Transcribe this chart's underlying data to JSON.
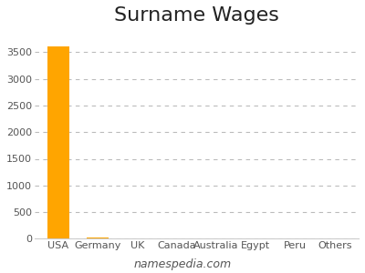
{
  "title": "Surname Wages",
  "categories": [
    "USA",
    "Germany",
    "UK",
    "Canada",
    "Australia",
    "Egypt",
    "Peru",
    "Others"
  ],
  "values": [
    3609,
    18,
    12,
    3,
    2,
    1,
    1,
    8
  ],
  "bar_color": "#FFA500",
  "background_color": "#ffffff",
  "ylim": [
    0,
    3900
  ],
  "yticks": [
    0,
    500,
    1000,
    1500,
    2000,
    2500,
    3000,
    3500
  ],
  "grid_color": "#bbbbbb",
  "title_fontsize": 16,
  "tick_fontsize": 8,
  "watermark": "namespedia.com",
  "watermark_fontsize": 9
}
